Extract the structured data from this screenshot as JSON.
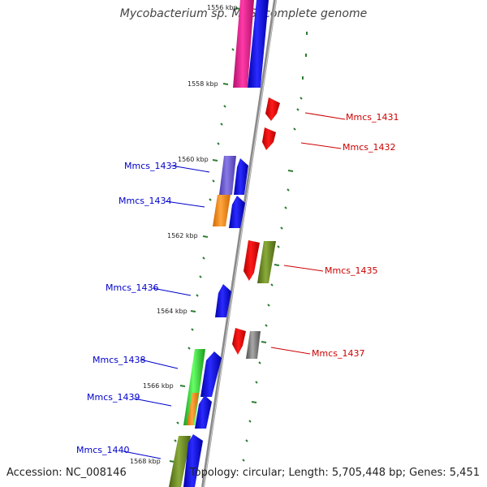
{
  "title": "Mycobacterium sp. MCS, complete genome",
  "accession": "Accession: NC_008146",
  "summary": "Topology: circular; Length: 5,705,448 bp; Genes: 5,451",
  "colors": {
    "backbone": "#8a8a8a",
    "forward_label": "#0000cc",
    "reverse_label": "#cc0000",
    "tick": "#2e7d32"
  },
  "kbp_labels": [
    "1556 kbp",
    "1558 kbp",
    "1560 kbp",
    "1562 kbp",
    "1564 kbp",
    "1566 kbp",
    "1568 kbp"
  ],
  "forward_genes": [
    {
      "label": "Mmcs_1433",
      "color": "#0000ee"
    },
    {
      "label": "Mmcs_1434",
      "color": "#0000ee"
    },
    {
      "label": "Mmcs_1436",
      "color": "#0000ee"
    },
    {
      "label": "Mmcs_1438",
      "color": "#0000ee"
    },
    {
      "label": "Mmcs_1439",
      "color": "#0000ee"
    },
    {
      "label": "Mmcs_1440",
      "color": "#0000ee"
    }
  ],
  "reverse_genes": [
    {
      "label": "Mmcs_1431",
      "color": "#ee0000"
    },
    {
      "label": "Mmcs_1432",
      "color": "#ee0000"
    },
    {
      "label": "Mmcs_1435",
      "color": "#ee0000"
    },
    {
      "label": "Mmcs_1437",
      "color": "#ee0000"
    }
  ],
  "cog_colors": [
    "#e0198a",
    "#6a5acd",
    "#ff8c00",
    "#6b8e23",
    "#808080",
    "#32cd32"
  ]
}
